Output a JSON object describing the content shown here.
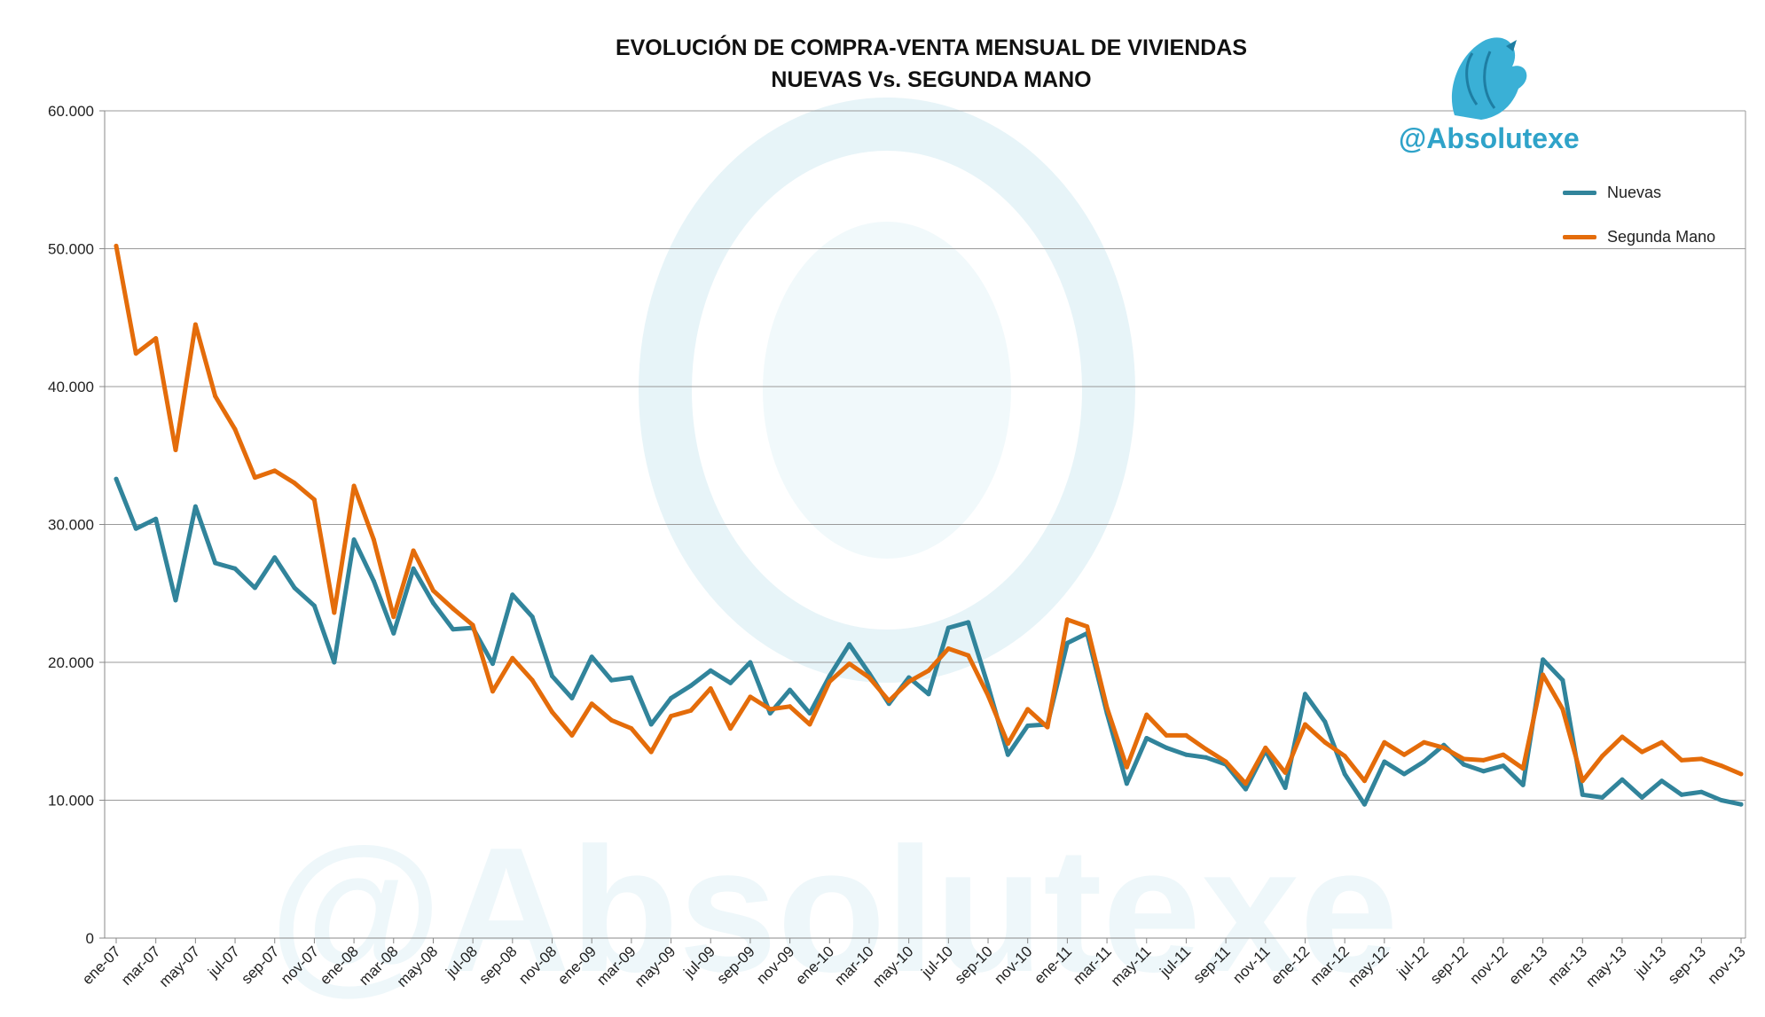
{
  "chart_data": {
    "type": "line",
    "title": "EVOLUCIÓN DE COMPRA-VENTA MENSUAL DE VIVIENDAS",
    "subtitle": "NUEVAS Vs. SEGUNDA MANO",
    "watermark": "@Absolutexe",
    "watermark_icon": "griffin-logo-icon",
    "xlabel": "",
    "ylabel": "",
    "ylim": [
      0,
      60000
    ],
    "yticks": [
      "0",
      "10.000",
      "20.000",
      "30.000",
      "40.000",
      "50.000",
      "60.000"
    ],
    "grid": true,
    "legend_position": "top-right",
    "x": [
      "ene-07",
      "feb-07",
      "mar-07",
      "abr-07",
      "may-07",
      "jun-07",
      "jul-07",
      "ago-07",
      "sep-07",
      "oct-07",
      "nov-07",
      "dic-07",
      "ene-08",
      "feb-08",
      "mar-08",
      "abr-08",
      "may-08",
      "jun-08",
      "jul-08",
      "ago-08",
      "sep-08",
      "oct-08",
      "nov-08",
      "dic-08",
      "ene-09",
      "feb-09",
      "mar-09",
      "abr-09",
      "may-09",
      "jun-09",
      "jul-09",
      "ago-09",
      "sep-09",
      "oct-09",
      "nov-09",
      "dic-09",
      "ene-10",
      "feb-10",
      "mar-10",
      "abr-10",
      "may-10",
      "jun-10",
      "jul-10",
      "ago-10",
      "sep-10",
      "oct-10",
      "nov-10",
      "dic-10",
      "ene-11",
      "feb-11",
      "mar-11",
      "abr-11",
      "may-11",
      "jun-11",
      "jul-11",
      "ago-11",
      "sep-11",
      "oct-11",
      "nov-11",
      "dic-11",
      "ene-12",
      "feb-12",
      "mar-12",
      "abr-12",
      "may-12",
      "jun-12",
      "jul-12",
      "ago-12",
      "sep-12",
      "oct-12",
      "nov-12",
      "dic-12",
      "ene-13",
      "feb-13",
      "mar-13",
      "abr-13",
      "may-13",
      "jun-13",
      "jul-13",
      "ago-13",
      "sep-13",
      "oct-13",
      "nov-13"
    ],
    "xtick_labels": [
      "ene-07",
      "mar-07",
      "may-07",
      "jul-07",
      "sep-07",
      "nov-07",
      "ene-08",
      "mar-08",
      "may-08",
      "jul-08",
      "sep-08",
      "nov-08",
      "ene-09",
      "mar-09",
      "may-09",
      "jul-09",
      "sep-09",
      "nov-09",
      "ene-10",
      "mar-10",
      "may-10",
      "jul-10",
      "sep-10",
      "nov-10",
      "ene-11",
      "mar-11",
      "may-11",
      "jul-11",
      "sep-11",
      "nov-11",
      "ene-12",
      "mar-12",
      "may-12",
      "jul-12",
      "sep-12",
      "nov-12",
      "ene-13",
      "mar-13",
      "may-13",
      "jul-13",
      "sep-13",
      "nov-13"
    ],
    "series": [
      {
        "name": "Nuevas",
        "color": "#31849b",
        "values": [
          33300,
          29700,
          30400,
          24500,
          31300,
          27200,
          26800,
          25400,
          27600,
          25400,
          24100,
          20000,
          28900,
          25900,
          22100,
          26800,
          24300,
          22400,
          22500,
          19900,
          24900,
          23300,
          19000,
          17400,
          20400,
          18700,
          18900,
          15500,
          17400,
          18300,
          19400,
          18500,
          20000,
          16300,
          18000,
          16300,
          19000,
          21300,
          19200,
          17000,
          18900,
          17700,
          22500,
          22900,
          18300,
          13300,
          15400,
          15500,
          21400,
          22100,
          16300,
          11200,
          14500,
          13800,
          13300,
          13100,
          12600,
          10800,
          13600,
          10900,
          17700,
          15700,
          11900,
          9700,
          12800,
          11900,
          12800,
          14000,
          12600,
          12100,
          12500,
          11100,
          20200,
          18700,
          10400,
          10200,
          11500,
          10200,
          11400,
          10400,
          10600,
          10000,
          9700
        ]
      },
      {
        "name": "Segunda Mano",
        "color": "#e46c0a",
        "values": [
          50200,
          42400,
          43500,
          35400,
          44500,
          39300,
          36900,
          33400,
          33900,
          33000,
          31800,
          23600,
          32800,
          28900,
          23300,
          28100,
          25200,
          23900,
          22700,
          17900,
          20300,
          18700,
          16400,
          14700,
          17000,
          15800,
          15200,
          13500,
          16100,
          16500,
          18100,
          15200,
          17500,
          16600,
          16800,
          15500,
          18600,
          19900,
          18900,
          17200,
          18600,
          19400,
          21000,
          20500,
          17600,
          14100,
          16600,
          15300,
          23100,
          22600,
          16700,
          12400,
          16200,
          14700,
          14700,
          13700,
          12800,
          11200,
          13800,
          12000,
          15500,
          14200,
          13200,
          11400,
          14200,
          13300,
          14200,
          13800,
          13000,
          12900,
          13300,
          12300,
          19100,
          16600,
          11400,
          13200,
          14600,
          13500,
          14200,
          12900,
          13000,
          12500,
          11900
        ]
      }
    ]
  }
}
